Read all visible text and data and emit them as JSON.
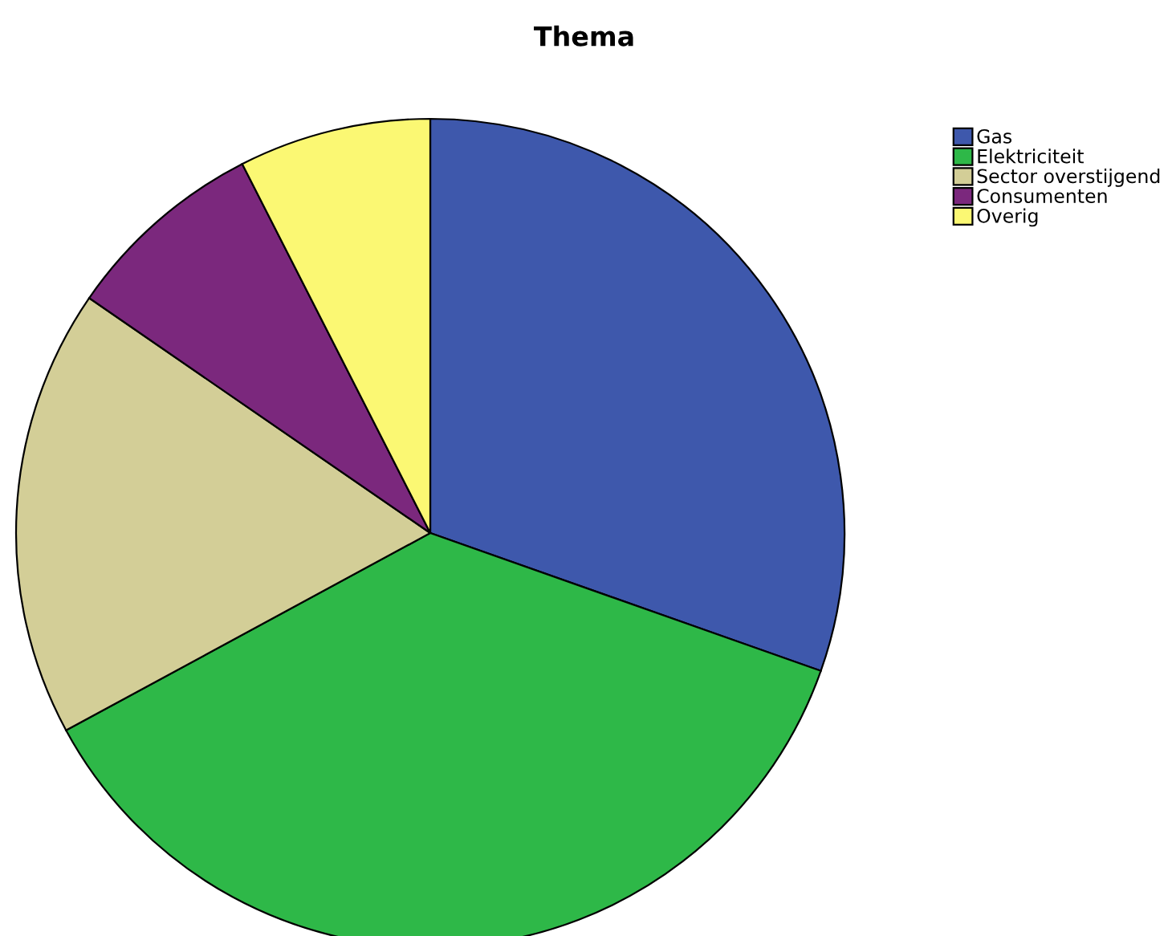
{
  "chart_data": {
    "type": "pie",
    "title": "Thema",
    "categories": [
      "Gas",
      "Elektriciteit",
      "Sector overstijgend",
      "Consumenten",
      "Overig"
    ],
    "values": [
      30.4,
      36.7,
      17.5,
      7.9,
      7.5
    ],
    "colors": [
      "#3e58ac",
      "#2eb848",
      "#d3ce97",
      "#7b287d",
      "#fbf873"
    ],
    "legend": "top right"
  }
}
